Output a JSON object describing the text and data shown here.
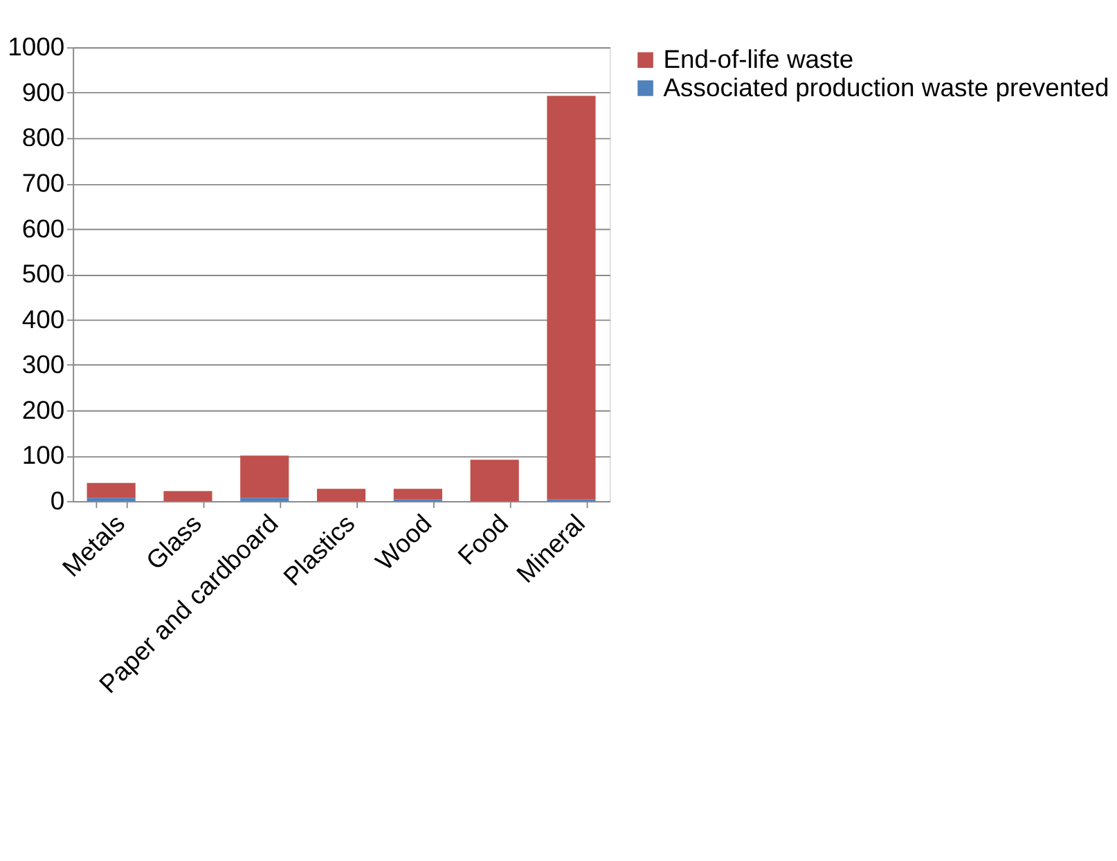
{
  "chart_data": {
    "type": "bar",
    "stacked": true,
    "categories": [
      "Metals",
      "Glass",
      "Paper and cardboard",
      "Plastics",
      "Wood",
      "Food",
      "Mineral"
    ],
    "series": [
      {
        "name": "Associated production waste prevented",
        "color": "#4f81bd",
        "values": [
          7,
          0,
          7,
          null,
          4,
          null,
          4
        ]
      },
      {
        "name": "End-of-life waste",
        "color": "#c0504d",
        "values": [
          33,
          22,
          93,
          27,
          23,
          91,
          889
        ]
      }
    ],
    "ylim": [
      0,
      1000
    ],
    "yticks": [
      0,
      100,
      200,
      300,
      400,
      500,
      600,
      700,
      800,
      900,
      1000
    ],
    "grid": "y",
    "legend": "right"
  }
}
